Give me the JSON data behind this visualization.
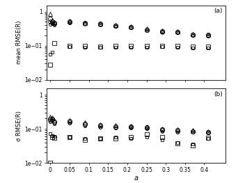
{
  "x": [
    0.0,
    0.005,
    0.01,
    0.05,
    0.09,
    0.13,
    0.17,
    0.21,
    0.25,
    0.29,
    0.33,
    0.37,
    0.41
  ],
  "panel_a": {
    "triangle": [
      0.85,
      0.55,
      0.48,
      0.52,
      0.47,
      0.44,
      0.41,
      0.37,
      0.31,
      0.28,
      0.26,
      0.22,
      0.21
    ],
    "circle_open": [
      0.6,
      0.5,
      0.46,
      0.5,
      0.46,
      0.43,
      0.39,
      0.355,
      0.295,
      0.265,
      0.25,
      0.21,
      0.205
    ],
    "circle_dot": [
      0.5,
      0.46,
      0.43,
      0.485,
      0.445,
      0.415,
      0.38,
      0.345,
      0.285,
      0.255,
      0.245,
      0.205,
      0.197
    ],
    "circle_small": [
      0.42,
      0.43,
      0.41,
      0.47,
      0.435,
      0.4,
      0.37,
      0.335,
      0.275,
      0.248,
      0.237,
      0.198,
      0.19
    ],
    "square_open1": [
      0.028,
      null,
      0.12,
      0.1,
      0.1,
      0.095,
      0.096,
      0.098,
      0.098,
      0.099,
      0.097,
      0.094,
      0.094
    ],
    "square_open2": [
      0.055,
      0.065,
      null,
      0.094,
      0.09,
      0.088,
      0.089,
      0.09,
      0.091,
      0.093,
      0.091,
      0.086,
      0.086
    ]
  },
  "panel_b": {
    "triangle": [
      0.225,
      0.21,
      0.175,
      0.175,
      0.15,
      0.135,
      0.125,
      0.12,
      0.115,
      0.1,
      0.096,
      0.09,
      0.085
    ],
    "circle_open": [
      0.19,
      0.195,
      0.16,
      0.165,
      0.14,
      0.125,
      0.118,
      0.113,
      0.108,
      0.095,
      0.09,
      0.085,
      0.08
    ],
    "circle_dot": [
      0.175,
      0.185,
      0.15,
      0.155,
      0.13,
      0.118,
      0.112,
      0.108,
      0.103,
      0.09,
      0.084,
      0.082,
      0.078
    ],
    "circle_small": [
      0.16,
      0.172,
      0.14,
      0.148,
      0.122,
      0.112,
      0.107,
      0.103,
      0.098,
      0.085,
      0.08,
      0.078,
      0.075
    ],
    "square_open1": [
      0.01,
      0.057,
      0.054,
      0.058,
      0.048,
      0.053,
      0.053,
      0.056,
      0.07,
      0.058,
      0.038,
      0.033,
      0.054
    ],
    "square_open2": [
      0.073,
      0.063,
      0.06,
      0.058,
      0.052,
      0.052,
      0.056,
      0.053,
      0.058,
      0.048,
      0.04,
      0.036,
      0.051
    ]
  },
  "xlabel": "a",
  "ylabel_a": "mean RMSE(R)",
  "ylabel_b": "σ RMSE(R)",
  "label_a": "(a)",
  "label_b": "(b)",
  "ylim": [
    0.01,
    1.5
  ],
  "xlim": [
    -0.01,
    0.455
  ],
  "xticks": [
    0,
    0.05,
    0.1,
    0.15,
    0.2,
    0.25,
    0.3,
    0.35,
    0.4
  ],
  "yticks": [
    0.01,
    0.1,
    1.0
  ]
}
